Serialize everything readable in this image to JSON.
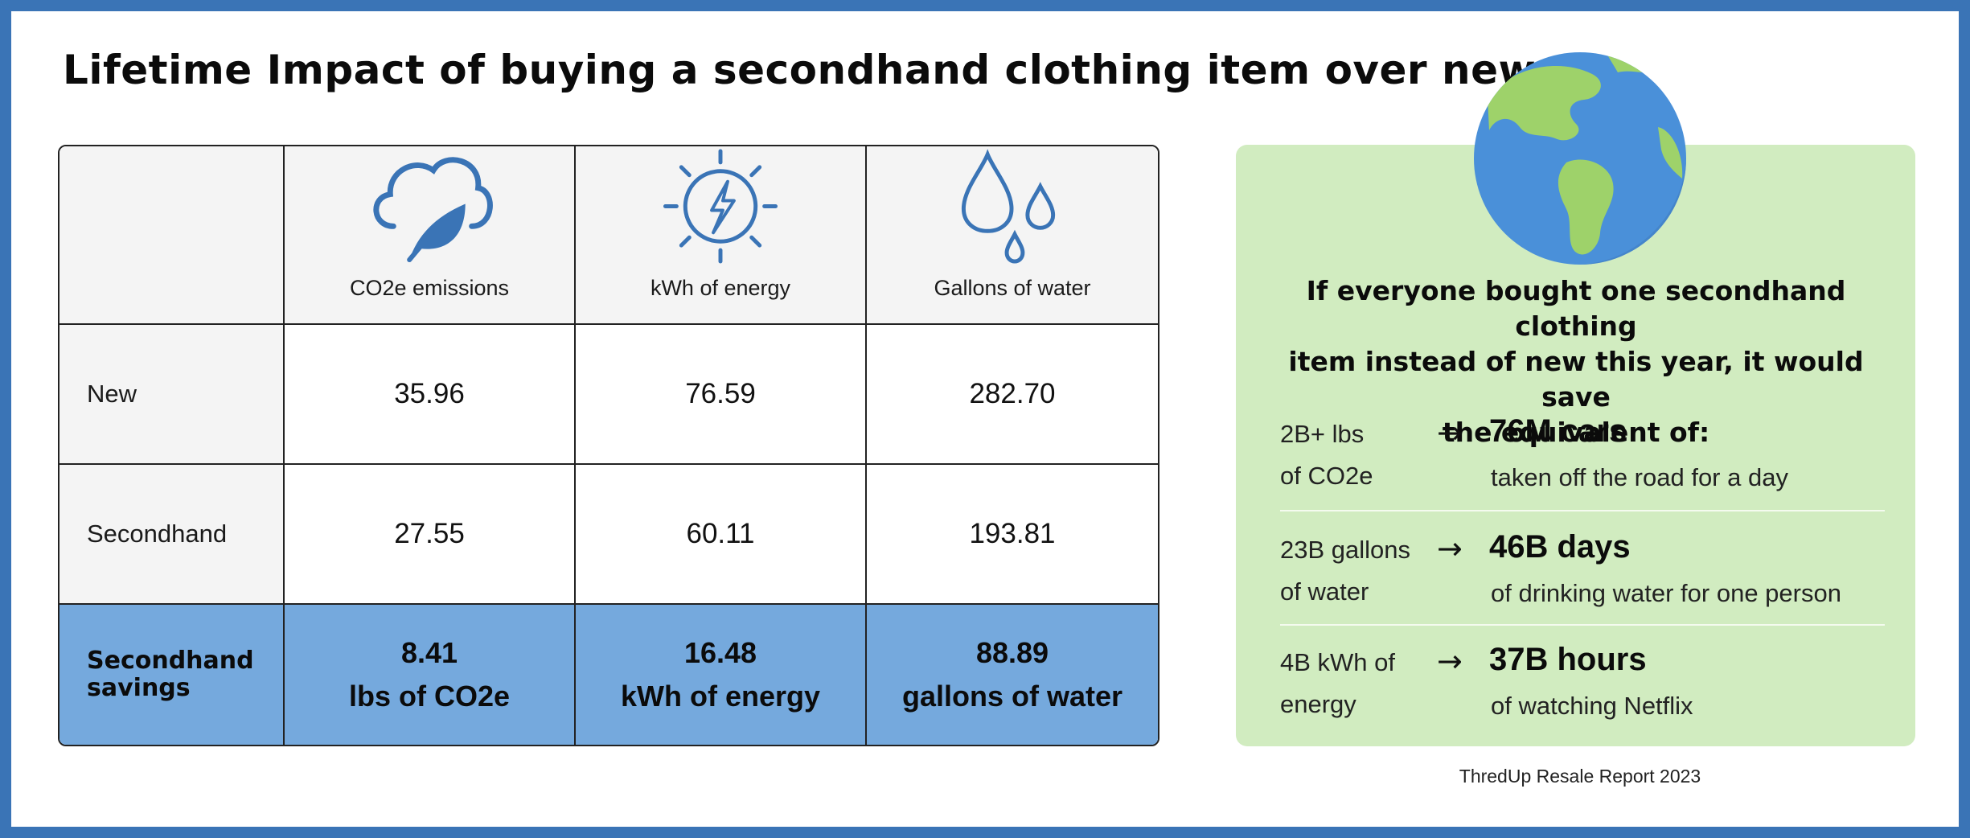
{
  "title": "Lifetime Impact of buying a secondhand clothing item over new",
  "table": {
    "columns": [
      {
        "label": "CO2e emissions",
        "icon": "cloud-leaf-icon"
      },
      {
        "label": "kWh of energy",
        "icon": "sun-lightning-icon"
      },
      {
        "label": "Gallons of water",
        "icon": "water-drops-icon"
      }
    ],
    "rows": [
      {
        "label": "New",
        "values": [
          "35.96",
          "76.59",
          "282.70"
        ]
      },
      {
        "label": "Secondhand",
        "values": [
          "27.55",
          "60.11",
          "193.81"
        ]
      }
    ],
    "savings": {
      "label": "Secondhand savings",
      "values": [
        {
          "number": "8.41",
          "unit": "lbs of CO2e"
        },
        {
          "number": "16.48",
          "unit": "kWh of energy"
        },
        {
          "number": "88.89",
          "unit": "gallons of water"
        }
      ]
    }
  },
  "panel": {
    "headline_lines": [
      "If everyone bought one secondhand clothing",
      "item instead of new this year, it would save",
      "the equivalent of:"
    ],
    "equivalents": [
      {
        "left_lines": [
          "2B+ lbs",
          "of CO2e"
        ],
        "arrow": "→",
        "big": "76M cars",
        "desc": "taken off the road for a day"
      },
      {
        "left_lines": [
          "23B gallons",
          "of water"
        ],
        "arrow": "→",
        "big": "46B days",
        "desc": "of drinking water for one person"
      },
      {
        "left_lines": [
          "4B kWh of",
          "energy"
        ],
        "arrow": "→",
        "big": "37B hours",
        "desc": "of watching Netflix"
      }
    ]
  },
  "source": "ThredUp Resale Report 2023",
  "colors": {
    "border": "#3a74b6",
    "icon": "#3a74b6",
    "savings_row": "#75a9dd",
    "panel": "#d1ecc0",
    "globe_ocean": "#4a90d9",
    "globe_land": "#9ed26a"
  }
}
